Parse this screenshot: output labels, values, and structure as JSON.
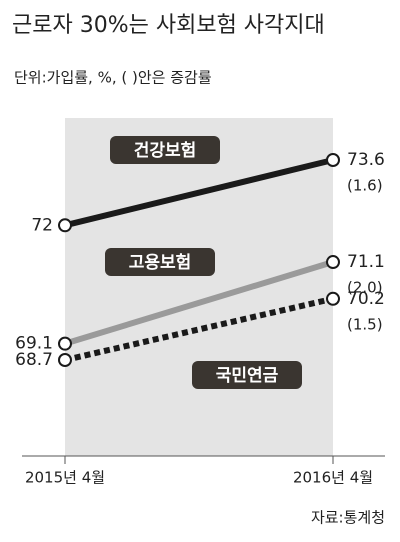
{
  "chart_data": {
    "type": "line",
    "title": "근로자 30%는 사회보험 사각지대",
    "subtitle": "단위:가입률, %, ( )안은 증감률",
    "source": "자료:통계청",
    "categories": [
      "2015년  4월",
      "2016년  4월"
    ],
    "series": [
      {
        "name": "건강보험",
        "color": "#1a1a1a",
        "style": "solid",
        "values": [
          72,
          73.6
        ],
        "change_label": "(1.6)"
      },
      {
        "name": "고용보험",
        "color": "#9a9a9a",
        "style": "solid",
        "values": [
          69.1,
          71.1
        ],
        "change_label": "(2.0)"
      },
      {
        "name": "국민연금",
        "color": "#1a1a1a",
        "style": "dotted",
        "values": [
          68.7,
          70.2
        ],
        "change_label": "(1.5)"
      }
    ]
  }
}
